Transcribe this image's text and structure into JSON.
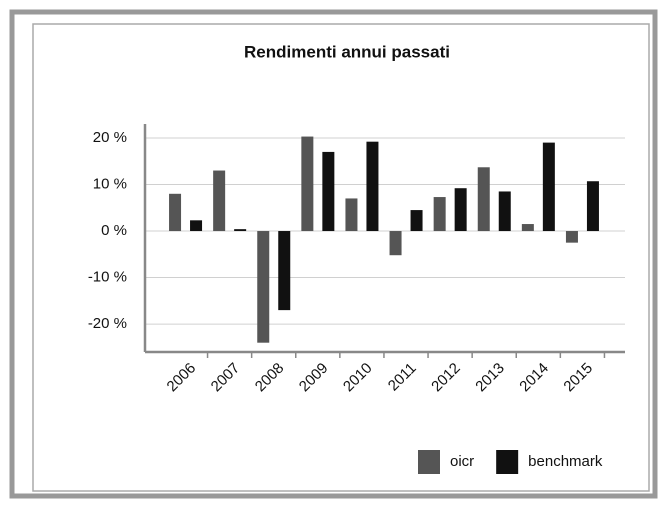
{
  "chart_data": {
    "type": "bar",
    "title": "Rendimenti annui passati",
    "categories": [
      "2006",
      "2007",
      "2008",
      "2009",
      "2010",
      "2011",
      "2012",
      "2013",
      "2014",
      "2015"
    ],
    "series": [
      {
        "name": "oicr",
        "color": "#555555",
        "values": [
          8,
          13,
          -24,
          20.3,
          7,
          -5.2,
          7.3,
          13.7,
          1.5,
          -2.5
        ]
      },
      {
        "name": "benchmark",
        "color": "#111111",
        "values": [
          2.3,
          0.4,
          -17,
          17,
          19.2,
          4.5,
          9.2,
          8.5,
          19,
          10.7
        ]
      }
    ],
    "ylim": [
      -26,
      23
    ],
    "yticks": [
      {
        "value": -20,
        "label": "-20 %"
      },
      {
        "value": -10,
        "label": "-10 %"
      },
      {
        "value": 0,
        "label": "0 %"
      },
      {
        "value": 10,
        "label": "10 %"
      },
      {
        "value": 20,
        "label": "20 %"
      }
    ],
    "grid": true,
    "legend": "lower right"
  }
}
